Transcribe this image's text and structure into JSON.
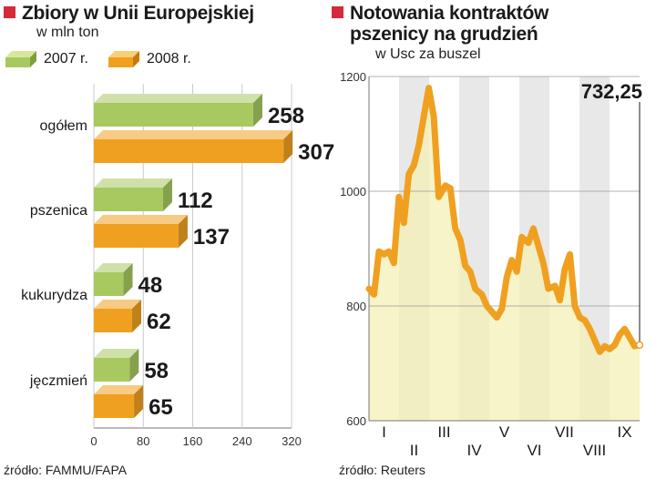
{
  "left": {
    "title": "Zbiory w Unii Europejskiej",
    "subtitle": "w mln ton",
    "legend": [
      {
        "label": "2007 r.",
        "color": "#a8c960"
      },
      {
        "label": "2008 r.",
        "color": "#f0a020"
      }
    ],
    "source": "źródło: FAMMU/FAPA"
  },
  "right": {
    "title": "Notowania kontraktów\npszenicy na grudzień",
    "subtitle": "w Usc za buszel",
    "source": "źródło: Reuters"
  },
  "chart_data": [
    {
      "type": "bar",
      "orientation": "horizontal",
      "title": "Zbiory w Unii Europejskiej",
      "subtitle": "w mln ton",
      "categories": [
        "ogółem",
        "pszenica",
        "kukurydza",
        "jęczmień"
      ],
      "series": [
        {
          "name": "2007 r.",
          "color": "#a8c960",
          "values": [
            258,
            112,
            48,
            58
          ]
        },
        {
          "name": "2008 r.",
          "color": "#f0a020",
          "values": [
            307,
            137,
            62,
            65
          ]
        }
      ],
      "xlim": [
        0,
        320
      ],
      "xticks": [
        "0",
        "80",
        "160",
        "240",
        "320"
      ],
      "legend": "top"
    },
    {
      "type": "line",
      "title": "Notowania kontraktów pszenicy na grudzień",
      "subtitle": "w Usc za buszel",
      "x_labels": [
        "I",
        "II",
        "III",
        "IV",
        "V",
        "VI",
        "VII",
        "VIII",
        "IX"
      ],
      "ylim": [
        600,
        1200
      ],
      "yticks": [
        "600",
        "800",
        "1000",
        "1200"
      ],
      "x": [
        0.0,
        0.15,
        0.3,
        0.45,
        0.6,
        0.75,
        0.9,
        1.05,
        1.2,
        1.35,
        1.5,
        1.65,
        1.8,
        1.95,
        2.1,
        2.3,
        2.45,
        2.6,
        2.75,
        2.9,
        3.05,
        3.2,
        3.4,
        3.55,
        3.7,
        3.85,
        4.0,
        4.15,
        4.3,
        4.45,
        4.6,
        4.8,
        4.95,
        5.1,
        5.25,
        5.4,
        5.6,
        5.75,
        5.9,
        6.05,
        6.2,
        6.35,
        6.5,
        6.65,
        6.8,
        6.95,
        7.1,
        7.25,
        7.4,
        7.55,
        7.7,
        7.85,
        8.0,
        8.15
      ],
      "y": [
        830,
        820,
        895,
        890,
        895,
        875,
        990,
        945,
        1030,
        1045,
        1080,
        1130,
        1180,
        1130,
        990,
        1010,
        1005,
        935,
        915,
        870,
        860,
        830,
        820,
        800,
        790,
        780,
        795,
        850,
        880,
        860,
        920,
        910,
        935,
        905,
        875,
        830,
        835,
        810,
        865,
        890,
        800,
        780,
        775,
        760,
        740,
        720,
        730,
        725,
        732,
        750,
        760,
        745,
        730,
        732
      ],
      "series_color": "#f0a020",
      "last_value_label": "732,25"
    }
  ]
}
